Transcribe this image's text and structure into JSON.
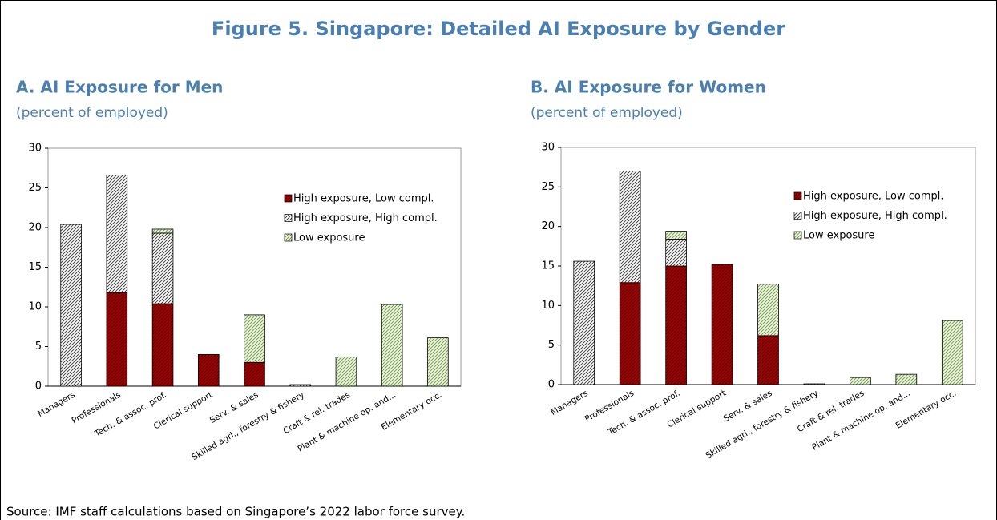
{
  "title": "Figure 5. Singapore: Detailed AI Exposure by Gender",
  "source": "Source: IMF staff calculations based on Singapore’s 2022 labor force survey.",
  "chart_data": [
    {
      "type": "bar",
      "stacked": true,
      "title": "A. AI Exposure for Men",
      "subtitle": "(percent of employed)",
      "categories": [
        "Managers",
        "Professionals",
        "Tech. & assoc. prof.",
        "Clerical support",
        "Serv. & sales",
        "Skilled agri., forestry & fishery",
        "Craft & rel. trades",
        "Plant & machine op. and...",
        "Elementary occ."
      ],
      "series": [
        {
          "name": "High exposure, Low compl.",
          "color": "#a50000",
          "hatch": "#4a0000",
          "values": [
            0,
            11.8,
            10.4,
            4.0,
            3.0,
            0,
            0,
            0,
            0
          ]
        },
        {
          "name": "High exposure, High compl.",
          "color": "#ffffff",
          "hatch": "#333333",
          "values": [
            20.4,
            14.8,
            8.9,
            0,
            0,
            0.2,
            0,
            0,
            0
          ]
        },
        {
          "name": "Low exposure",
          "color": "#eef5e0",
          "hatch": "#6f9a4a",
          "values": [
            0,
            0,
            0.5,
            0,
            6.0,
            0,
            3.7,
            10.3,
            6.1
          ]
        }
      ],
      "ylim": [
        0,
        30
      ],
      "yticks": [
        0,
        5,
        10,
        15,
        20,
        25,
        30
      ],
      "legend": "upper right"
    },
    {
      "type": "bar",
      "stacked": true,
      "title": "B. AI Exposure for Women",
      "subtitle": "(percent of employed)",
      "categories": [
        "Managers",
        "Professionals",
        "Tech. & assoc. prof.",
        "Clerical support",
        "Serv. & sales",
        "Skilled agri., forestry & fishery",
        "Craft & rel. trades",
        "Plant & machine op. and...",
        "Elementary occ."
      ],
      "series": [
        {
          "name": "High exposure, Low compl.",
          "color": "#a50000",
          "hatch": "#4a0000",
          "values": [
            0,
            12.9,
            15.0,
            15.2,
            6.2,
            0,
            0,
            0,
            0
          ]
        },
        {
          "name": "High exposure, High compl.",
          "color": "#ffffff",
          "hatch": "#333333",
          "values": [
            15.6,
            14.1,
            3.4,
            0,
            0,
            0.1,
            0,
            0,
            0
          ]
        },
        {
          "name": "Low exposure",
          "color": "#eef5e0",
          "hatch": "#6f9a4a",
          "values": [
            0,
            0,
            1.0,
            0,
            6.5,
            0,
            0.9,
            1.3,
            8.1
          ]
        }
      ],
      "ylim": [
        0,
        30
      ],
      "yticks": [
        0,
        5,
        10,
        15,
        20,
        25,
        30
      ],
      "legend": "upper right"
    }
  ]
}
